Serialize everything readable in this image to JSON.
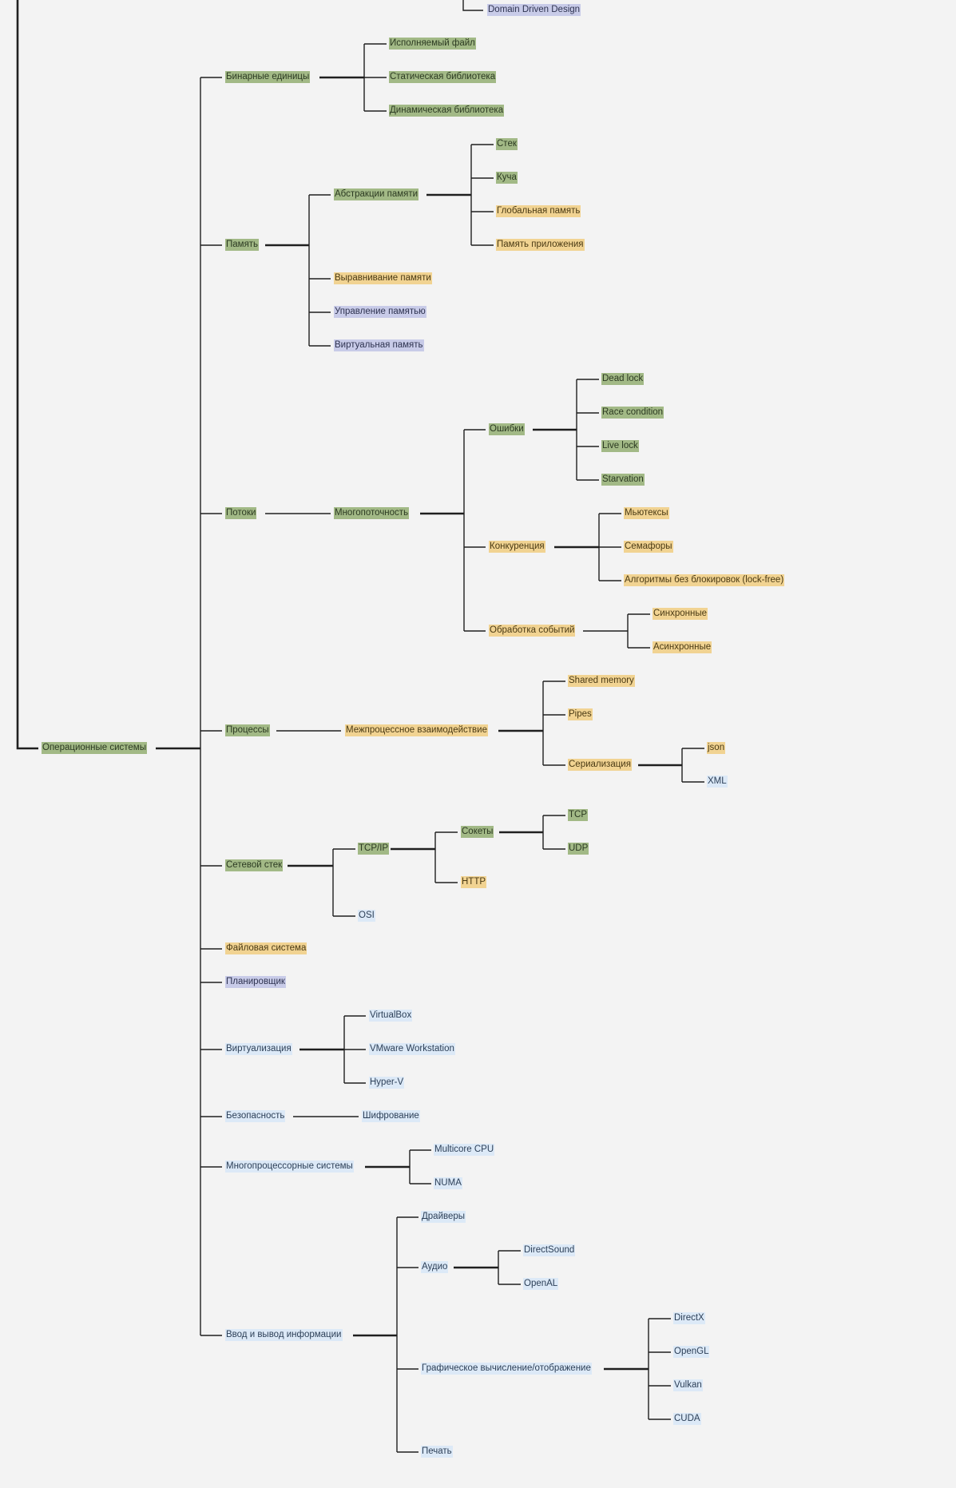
{
  "colors": {
    "background": "#f3f3f3",
    "green": "#a2b986",
    "yellow": "#f1d392",
    "purple": "#c8cbe8",
    "blue": "#dce9f7",
    "line": "#1f1f1f"
  },
  "nodes": [
    {
      "id": "ddd",
      "label": "Domain Driven Design",
      "color": "purple"
    },
    {
      "id": "os",
      "label": "Операционные системы",
      "color": "green"
    },
    {
      "id": "bin",
      "label": "Бинарные единицы",
      "color": "green"
    },
    {
      "id": "exe",
      "label": "Исполняемый файл",
      "color": "green"
    },
    {
      "id": "static",
      "label": "Статическая библиотека",
      "color": "green"
    },
    {
      "id": "dynamic",
      "label": "Динамическая библиотека",
      "color": "green"
    },
    {
      "id": "mem",
      "label": "Память",
      "color": "green"
    },
    {
      "id": "memabs",
      "label": "Абстракции памяти",
      "color": "green"
    },
    {
      "id": "stack",
      "label": "Стек",
      "color": "green"
    },
    {
      "id": "heap",
      "label": "Куча",
      "color": "green"
    },
    {
      "id": "global",
      "label": "Глобальная память",
      "color": "yellow"
    },
    {
      "id": "appmem",
      "label": "Память приложения",
      "color": "yellow"
    },
    {
      "id": "align",
      "label": "Выравнивание памяти",
      "color": "yellow"
    },
    {
      "id": "memmgmt",
      "label": "Управление памятью",
      "color": "purple"
    },
    {
      "id": "virtmem",
      "label": "Виртуальная память",
      "color": "purple"
    },
    {
      "id": "threads",
      "label": "Потоки",
      "color": "green"
    },
    {
      "id": "mt",
      "label": "Многопоточность",
      "color": "green"
    },
    {
      "id": "errors",
      "label": "Ошибки",
      "color": "green"
    },
    {
      "id": "deadlock",
      "label": "Dead lock",
      "color": "green"
    },
    {
      "id": "race",
      "label": "Race condition",
      "color": "green"
    },
    {
      "id": "livelock",
      "label": "Live lock",
      "color": "green"
    },
    {
      "id": "starv",
      "label": "Starvation",
      "color": "green"
    },
    {
      "id": "conc",
      "label": "Конкуренция",
      "color": "yellow"
    },
    {
      "id": "mutex",
      "label": "Мьютексы",
      "color": "yellow"
    },
    {
      "id": "sem",
      "label": "Семафоры",
      "color": "yellow"
    },
    {
      "id": "lockfree",
      "label": "Алгоритмы без блокировок (lock-free)",
      "color": "yellow"
    },
    {
      "id": "events",
      "label": "Обработка событий",
      "color": "yellow"
    },
    {
      "id": "sync",
      "label": "Синхронные",
      "color": "yellow"
    },
    {
      "id": "async",
      "label": "Асинхронные",
      "color": "yellow"
    },
    {
      "id": "proc",
      "label": "Процессы",
      "color": "green"
    },
    {
      "id": "ipc",
      "label": "Межпроцессное взаимодействие",
      "color": "yellow"
    },
    {
      "id": "shm",
      "label": "Shared memory",
      "color": "yellow"
    },
    {
      "id": "pipes",
      "label": "Pipes",
      "color": "yellow"
    },
    {
      "id": "serial",
      "label": "Сериализация",
      "color": "yellow"
    },
    {
      "id": "json",
      "label": "json",
      "color": "yellow"
    },
    {
      "id": "xml",
      "label": "XML",
      "color": "blue"
    },
    {
      "id": "net",
      "label": "Сетевой стек",
      "color": "green"
    },
    {
      "id": "tcpip",
      "label": "TCP/IP",
      "color": "green"
    },
    {
      "id": "sockets",
      "label": "Сокеты",
      "color": "green"
    },
    {
      "id": "tcp",
      "label": "TCP",
      "color": "green"
    },
    {
      "id": "udp",
      "label": "UDP",
      "color": "green"
    },
    {
      "id": "http",
      "label": "HTTP",
      "color": "yellow"
    },
    {
      "id": "osi",
      "label": "OSI",
      "color": "blue"
    },
    {
      "id": "fs",
      "label": "Файловая система",
      "color": "yellow"
    },
    {
      "id": "sched",
      "label": "Планировщик",
      "color": "purple"
    },
    {
      "id": "virt",
      "label": "Виртуализация",
      "color": "blue"
    },
    {
      "id": "vbox",
      "label": "VirtualBox",
      "color": "blue"
    },
    {
      "id": "vmware",
      "label": "VMware Workstation",
      "color": "blue"
    },
    {
      "id": "hyperv",
      "label": "Hyper-V",
      "color": "blue"
    },
    {
      "id": "sec",
      "label": "Безопасность",
      "color": "blue"
    },
    {
      "id": "enc",
      "label": "Шифрование",
      "color": "blue"
    },
    {
      "id": "mp",
      "label": "Многопроцессорные системы",
      "color": "blue"
    },
    {
      "id": "multicore",
      "label": "Multicore CPU",
      "color": "blue"
    },
    {
      "id": "numa",
      "label": "NUMA",
      "color": "blue"
    },
    {
      "id": "io",
      "label": "Ввод и вывод информации",
      "color": "blue"
    },
    {
      "id": "drivers",
      "label": "Драйверы",
      "color": "blue"
    },
    {
      "id": "audio",
      "label": "Аудио",
      "color": "blue"
    },
    {
      "id": "dsound",
      "label": "DirectSound",
      "color": "blue"
    },
    {
      "id": "openal",
      "label": "OpenAL",
      "color": "blue"
    },
    {
      "id": "gfx",
      "label": "Графическое вычисление/отображение",
      "color": "blue"
    },
    {
      "id": "directx",
      "label": "DirectX",
      "color": "blue"
    },
    {
      "id": "opengl",
      "label": "OpenGL",
      "color": "blue"
    },
    {
      "id": "vulkan",
      "label": "Vulkan",
      "color": "blue"
    },
    {
      "id": "cuda",
      "label": "CUDA",
      "color": "blue"
    },
    {
      "id": "print",
      "label": "Печать",
      "color": "blue"
    }
  ]
}
